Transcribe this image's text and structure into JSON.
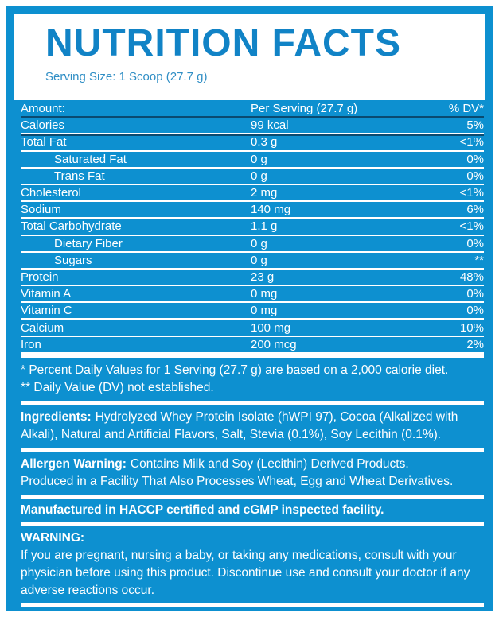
{
  "colors": {
    "panel_blue": "#0d90d0",
    "title_blue": "#1183c6",
    "serving_blue": "#2f8ec5",
    "dark_separator": "#0a4a70",
    "text_white": "#ffffff"
  },
  "header": {
    "title": "NUTRITION FACTS",
    "serving_size": "Serving Size: 1 Scoop (27.7 g)"
  },
  "table": {
    "header": {
      "label": "Amount:",
      "value": "Per Serving (27.7 g)",
      "dv": "% DV*"
    },
    "rows": [
      {
        "label": "Calories",
        "value": "99 kcal",
        "dv": "5%"
      },
      {
        "label": "Total Fat",
        "value": "0.3 g",
        "dv": "<1%"
      },
      {
        "label": "Saturated Fat",
        "value": "0 g",
        "dv": "0%"
      },
      {
        "label": "Trans Fat",
        "value": "0 g",
        "dv": "0%"
      },
      {
        "label": "Cholesterol",
        "value": "2 mg",
        "dv": "<1%"
      },
      {
        "label": "Sodium",
        "value": "140 mg",
        "dv": "6%"
      },
      {
        "label": "Total Carbohydrate",
        "value": "1.1 g",
        "dv": "<1%"
      },
      {
        "label": "Dietary Fiber",
        "value": "0 g",
        "dv": "0%"
      },
      {
        "label": "Sugars",
        "value": "0 g",
        "dv": "**"
      },
      {
        "label": "Protein",
        "value": "23 g",
        "dv": "48%"
      },
      {
        "label": "Vitamin A",
        "value": "0 mg",
        "dv": "0%"
      },
      {
        "label": "Vitamin C",
        "value": "0 mg",
        "dv": "0%"
      },
      {
        "label": "Calcium",
        "value": "100 mg",
        "dv": "10%"
      },
      {
        "label": "Iron",
        "value": "200 mcg",
        "dv": "2%"
      }
    ]
  },
  "footnotes": {
    "line1": "* Percent Daily Values for 1 Serving (27.7 g) are based on a 2,000 calorie diet.",
    "line2": "** Daily Value (DV) not established."
  },
  "ingredients": {
    "label": "Ingredients:",
    "text": "Hydrolyzed Whey Protein Isolate (hWPI 97), Cocoa (Alkalized with Alkali), Natural and Artificial Flavors, Salt, Stevia (0.1%), Soy Lecithin (0.1%)."
  },
  "allergen": {
    "label": "Allergen Warning:",
    "text": "Contains Milk and Soy (Lecithin) Derived Products.",
    "text2": "Produced in a Facility That Also Processes Wheat, Egg and Wheat Derivatives."
  },
  "manufactured": {
    "text": "Manufactured in HACCP certified and cGMP inspected facility."
  },
  "warning": {
    "label": "WARNING:",
    "text": "If you are pregnant, nursing a baby, or taking any medications, consult with your physician before using this product. Discontinue use and consult your doctor if any adverse reactions occur."
  }
}
